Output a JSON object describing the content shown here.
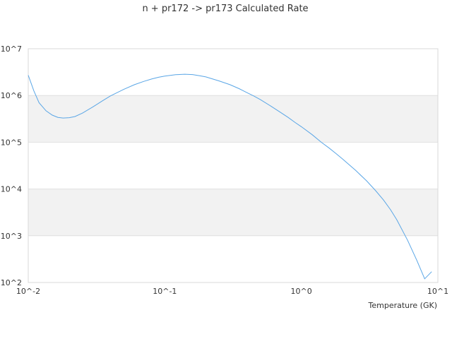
{
  "chart_data": {
    "type": "line",
    "title": "n + pr172 -> pr173 Calculated Rate",
    "xlabel": "Temperature (GK)",
    "ylabel": "",
    "x_scale": "log",
    "y_scale": "log",
    "xlim": [
      0.01,
      10
    ],
    "ylim": [
      100,
      10000000
    ],
    "x_ticks": [
      "10^-2",
      "10^-1",
      "10^0",
      "10^1"
    ],
    "y_ticks": [
      "10^2",
      "10^3",
      "10^4",
      "10^5",
      "10^6",
      "10^7"
    ],
    "grid": "horizontal, alternating shaded bands",
    "legend": "none",
    "series": [
      {
        "color": "#5aa6e6",
        "x": [
          0.01,
          0.011,
          0.012,
          0.0135,
          0.015,
          0.0165,
          0.018,
          0.02,
          0.022,
          0.025,
          0.03,
          0.035,
          0.04,
          0.05,
          0.06,
          0.07,
          0.08,
          0.09,
          0.1,
          0.12,
          0.14,
          0.16,
          0.18,
          0.2,
          0.25,
          0.3,
          0.35,
          0.4,
          0.45,
          0.5,
          0.6,
          0.7,
          0.8,
          0.9,
          1.0,
          1.2,
          1.4,
          1.6,
          1.8,
          2.0,
          2.5,
          3.0,
          3.5,
          4.0,
          4.5,
          5.0,
          6.0,
          7.0,
          8.0,
          9.0
        ],
        "y": [
          2700000,
          1250000,
          700000,
          470000,
          380000,
          340000,
          330000,
          335000,
          355000,
          420000,
          580000,
          770000,
          980000,
          1350000,
          1700000,
          2000000,
          2250000,
          2450000,
          2600000,
          2780000,
          2850000,
          2800000,
          2650000,
          2500000,
          2050000,
          1700000,
          1400000,
          1150000,
          970000,
          820000,
          590000,
          440000,
          340000,
          265000,
          215000,
          145000,
          100000,
          75000,
          57000,
          44000,
          25000,
          15000,
          9200,
          5800,
          3600,
          2200,
          800,
          300,
          120,
          170
        ]
      }
    ]
  }
}
